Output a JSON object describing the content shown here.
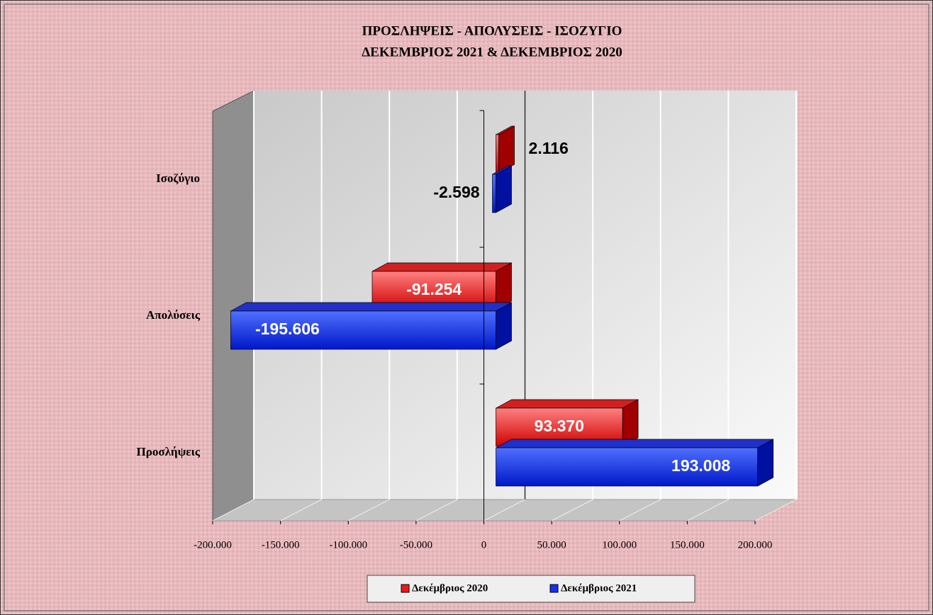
{
  "chart_data": {
    "type": "bar3d_horizontal",
    "title": "ΠΡΟΣΛΗΨΕΙΣ - ΑΠΟΛΥΣΕΙΣ - ΙΣΟΖΥΓΙΟ",
    "subtitle": "ΔΕΚΕΜΒΡΙΟΣ 2021 & ΔΕΚΕΜΒΡΙΟΣ 2020",
    "categories": [
      "Προσλήψεις",
      "Απολύσεις",
      "Ισοζύγιο"
    ],
    "series": [
      {
        "name": "Δεκέμβριος 2020",
        "color": "#f01818",
        "values": [
          93370,
          -91254,
          2116
        ],
        "value_labels": [
          "93.370",
          "-91.254",
          "2.116"
        ]
      },
      {
        "name": "Δεκέμβριος 2021",
        "color": "#1830f0",
        "values": [
          193008,
          -195606,
          -2598
        ],
        "value_labels": [
          "193.008",
          "-195.606",
          "-2.598"
        ]
      }
    ],
    "xlim": [
      -200000,
      200000
    ],
    "xticks": [
      {
        "value": -200000,
        "label": "-200.000"
      },
      {
        "value": -150000,
        "label": "-150.000"
      },
      {
        "value": -100000,
        "label": "-100.000"
      },
      {
        "value": -50000,
        "label": "-50.000"
      },
      0,
      {
        "value": 50000,
        "label": "50.000"
      },
      {
        "value": 100000,
        "label": "100.000"
      },
      {
        "value": 150000,
        "label": "150.000"
      },
      {
        "value": 200000,
        "label": "200.000"
      }
    ],
    "grid": true,
    "legend": "bottom"
  }
}
